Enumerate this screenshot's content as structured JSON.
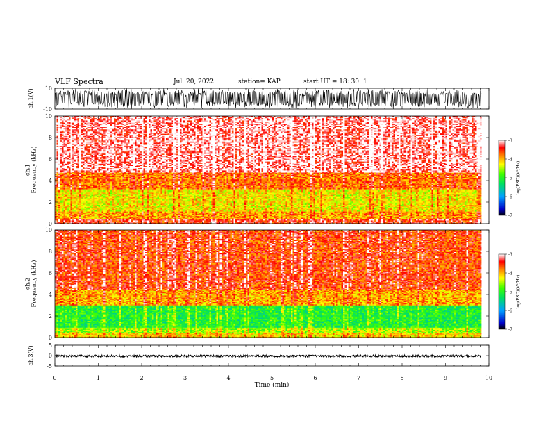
{
  "header": {
    "title": "VLF Spectra",
    "date": "Jul. 20, 2022",
    "station": "station= KAP",
    "start": "start UT = 18: 30: 1"
  },
  "chart_data": [
    {
      "type": "line",
      "name": "ch1-waveform",
      "ylabel": "ch.1(V)",
      "ylim": [
        -10,
        10
      ],
      "yticks": [
        "10",
        "-10"
      ],
      "xlim": [
        0,
        10
      ],
      "data_extent_min": 9.83,
      "amplitude_range": [
        -10,
        10
      ]
    },
    {
      "type": "heatmap",
      "name": "ch1-spectrogram",
      "ylabel": "ch.1\nFrequency (kHz)",
      "ylim": [
        0,
        10
      ],
      "yticks": [
        "0",
        "2",
        "4",
        "6",
        "8",
        "10"
      ],
      "xlim": [
        0,
        10
      ],
      "colorbar": {
        "label": "log(PSD)(V²/Hz)",
        "ticks": [
          "-3",
          "-4",
          "-5",
          "-6",
          "-7"
        ],
        "range": [
          -7,
          -3
        ]
      },
      "profile_by_band_khz": [
        {
          "band": [
            0.0,
            0.4
          ],
          "level": -3.5
        },
        {
          "band": [
            0.4,
            1.2
          ],
          "level": -4.0
        },
        {
          "band": [
            1.2,
            3.2
          ],
          "level": -4.3
        },
        {
          "band": [
            3.2,
            4.8
          ],
          "level": -3.8
        },
        {
          "band": [
            4.8,
            10.0
          ],
          "level": -3.2
        }
      ]
    },
    {
      "type": "heatmap",
      "name": "ch2-spectrogram",
      "ylabel": "ch.2\nFrequency (kHz)",
      "ylim": [
        0,
        10
      ],
      "yticks": [
        "0",
        "2",
        "4",
        "6",
        "8",
        "10"
      ],
      "xlim": [
        0,
        10
      ],
      "colorbar": {
        "label": "log(PSD)(V²/Hz)",
        "ticks": [
          "-3",
          "-4",
          "-5",
          "-6",
          "-7"
        ],
        "range": [
          -7,
          -3
        ]
      },
      "profile_by_band_khz": [
        {
          "band": [
            0.0,
            0.4
          ],
          "level": -4.2
        },
        {
          "band": [
            0.4,
            1.0
          ],
          "level": -4.6
        },
        {
          "band": [
            1.0,
            3.0
          ],
          "level": -5.1
        },
        {
          "band": [
            3.0,
            4.5
          ],
          "level": -4.0
        },
        {
          "band": [
            4.5,
            10.0
          ],
          "level": -3.6
        }
      ]
    },
    {
      "type": "line",
      "name": "ch3-waveform",
      "ylabel": "ch.3(V)",
      "ylim": [
        -5,
        5
      ],
      "yticks": [
        "5",
        "0",
        "-5"
      ],
      "xlim": [
        0,
        10
      ],
      "level_range": [
        -0.7,
        0.3
      ]
    }
  ],
  "x_axis": {
    "label": "Time (min)",
    "ticks": [
      "0",
      "1",
      "2",
      "3",
      "4",
      "5",
      "6",
      "7",
      "8",
      "9",
      "10"
    ],
    "range": [
      0,
      10
    ]
  }
}
